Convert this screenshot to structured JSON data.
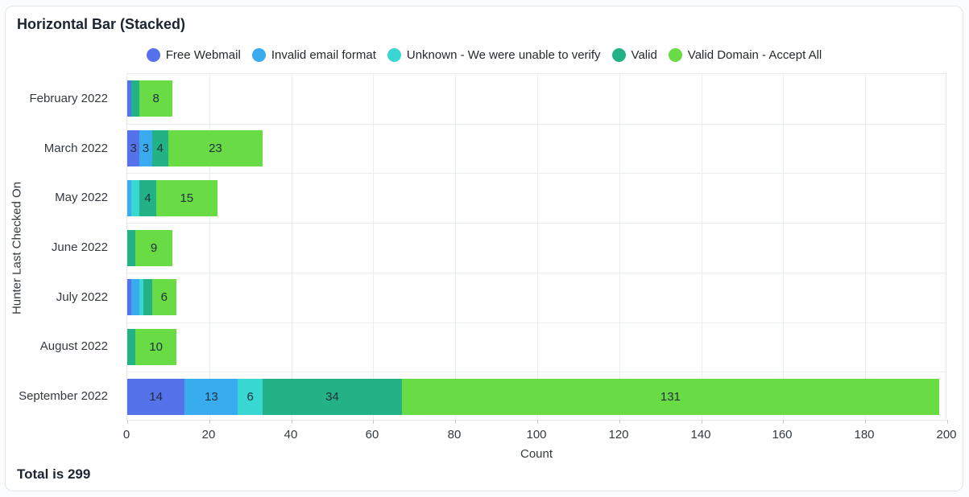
{
  "header": {
    "title": "Horizontal Bar (Stacked)"
  },
  "footer": {
    "total_label": "Total is 299"
  },
  "chart_data": {
    "type": "bar",
    "orientation": "horizontal",
    "stacked": true,
    "title": "Horizontal Bar (Stacked)",
    "xlabel": "Count",
    "ylabel": "Hunter Last Checked On",
    "xlim": [
      0,
      200
    ],
    "xticks": [
      0,
      20,
      40,
      60,
      80,
      100,
      120,
      140,
      160,
      180,
      200
    ],
    "grid": true,
    "legend_position": "top",
    "bar_label_min_value": 3,
    "categories": [
      "February 2022",
      "March 2022",
      "May 2022",
      "June 2022",
      "July 2022",
      "August 2022",
      "September 2022"
    ],
    "series": [
      {
        "name": "Free Webmail",
        "color": "#5572ea",
        "values": [
          1,
          3,
          0,
          0,
          1,
          0,
          14
        ]
      },
      {
        "name": "Invalid email format",
        "color": "#38acee",
        "values": [
          0,
          3,
          1,
          0,
          2,
          0,
          13
        ]
      },
      {
        "name": "Unknown - We were unable to verify",
        "color": "#38d7d2",
        "values": [
          0,
          0,
          2,
          0,
          1,
          0,
          6
        ]
      },
      {
        "name": "Valid",
        "color": "#22b286",
        "values": [
          2,
          4,
          4,
          2,
          2,
          2,
          34
        ]
      },
      {
        "name": "Valid Domain - Accept All",
        "color": "#68db45",
        "values": [
          8,
          23,
          15,
          9,
          6,
          10,
          131
        ]
      }
    ],
    "totals": [
      11,
      33,
      22,
      11,
      12,
      12,
      198
    ],
    "grand_total": 299
  }
}
